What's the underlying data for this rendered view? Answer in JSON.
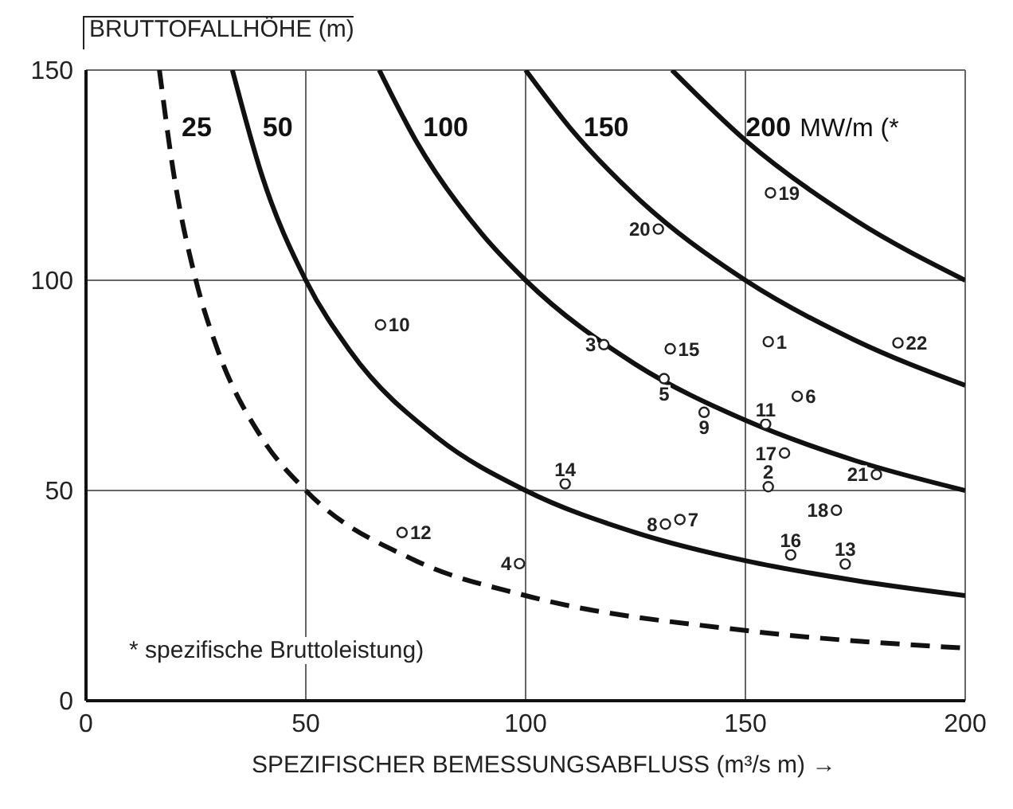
{
  "chart_data": {
    "type": "scatter",
    "xlabel": "SPEZIFISCHER BEMESSUNGSABFLUSS (m³/s m) →",
    "ylabel": "BRUTTOFALLHÖHE (m)",
    "xlim": [
      0,
      200
    ],
    "xticks": [
      0,
      50,
      100,
      150,
      200
    ],
    "ylim": [
      0,
      150
    ],
    "yticks": [
      0,
      50,
      100,
      150
    ],
    "grid": true,
    "marker": "circle",
    "annotations": [
      "MW/m (*",
      "* spezifische Bruttoleistung)",
      {
        "text": "1",
        "x": 155.2,
        "y": 85.4
      },
      {
        "text": "2",
        "x": 155.2,
        "y": 50.9
      },
      {
        "text": "3",
        "x": 117.8,
        "y": 84.7
      },
      {
        "text": "4",
        "x": 98.6,
        "y": 32.6
      },
      {
        "text": "5",
        "x": 131.5,
        "y": 76.6
      },
      {
        "text": "6",
        "x": 161.8,
        "y": 72.4
      },
      {
        "text": "7",
        "x": 135.1,
        "y": 43.1
      },
      {
        "text": "8",
        "x": 131.8,
        "y": 42.0
      },
      {
        "text": "9",
        "x": 140.6,
        "y": 68.6
      },
      {
        "text": "10",
        "x": 67.0,
        "y": 89.4
      },
      {
        "text": "11",
        "x": 154.6,
        "y": 65.8
      },
      {
        "text": "12",
        "x": 71.9,
        "y": 40.0
      },
      {
        "text": "13",
        "x": 172.7,
        "y": 32.5
      },
      {
        "text": "14",
        "x": 109.0,
        "y": 51.6
      },
      {
        "text": "15",
        "x": 132.9,
        "y": 83.7
      },
      {
        "text": "16",
        "x": 160.3,
        "y": 34.7
      },
      {
        "text": "17",
        "x": 158.9,
        "y": 58.9
      },
      {
        "text": "18",
        "x": 170.7,
        "y": 45.3
      },
      {
        "text": "19",
        "x": 155.7,
        "y": 120.8
      },
      {
        "text": "20",
        "x": 130.2,
        "y": 112.2
      },
      {
        "text": "21",
        "x": 179.8,
        "y": 53.8
      },
      {
        "text": "22",
        "x": 184.7,
        "y": 85.1
      }
    ],
    "series": [
      {
        "color": "#222222",
        "x": [
          155.2,
          155.2,
          117.8,
          98.6,
          131.5,
          161.8,
          135.1,
          131.8,
          140.6,
          67.0,
          154.6,
          71.9,
          172.7,
          109.0,
          132.9,
          160.3,
          158.9,
          170.7,
          155.7,
          130.2,
          179.8,
          184.7
        ],
        "values": [
          85.4,
          50.9,
          84.7,
          32.6,
          76.6,
          72.4,
          43.1,
          42.0,
          68.6,
          89.4,
          65.8,
          40.0,
          32.5,
          51.6,
          83.7,
          34.7,
          58.9,
          45.3,
          120.8,
          112.2,
          53.8,
          85.1
        ]
      },
      {
        "type": "line",
        "name": "25",
        "color": "#111111",
        "line_style": "dashed",
        "marker": "none",
        "x": [
          16.7,
          20,
          25,
          30,
          40,
          50,
          75,
          100,
          150,
          200
        ],
        "values": [
          150,
          125,
          100,
          83.3,
          62.5,
          50,
          33.3,
          25,
          16.7,
          12.5
        ]
      },
      {
        "type": "line",
        "name": "50",
        "color": "#111111",
        "line_style": "solid",
        "marker": "none",
        "x": [
          33.3,
          40,
          50,
          60,
          80,
          100,
          125,
          150,
          175,
          200
        ],
        "values": [
          150,
          125,
          100,
          83.3,
          62.5,
          50,
          40,
          33.3,
          28.6,
          25
        ]
      },
      {
        "type": "line",
        "name": "100",
        "color": "#111111",
        "line_style": "solid",
        "marker": "none",
        "x": [
          66.7,
          75,
          90,
          100,
          125,
          150,
          175,
          200
        ],
        "values": [
          150,
          133.3,
          111.1,
          100,
          80,
          66.7,
          57.1,
          50
        ]
      },
      {
        "type": "line",
        "name": "150",
        "color": "#111111",
        "line_style": "solid",
        "marker": "none",
        "x": [
          100,
          110,
          125,
          150,
          175,
          200
        ],
        "values": [
          150,
          136.4,
          120,
          100,
          85.7,
          75
        ]
      },
      {
        "type": "line",
        "name": "200",
        "color": "#111111",
        "line_style": "solid",
        "marker": "none",
        "x": [
          133.3,
          150,
          175,
          200
        ],
        "values": [
          150,
          133.3,
          114.3,
          100
        ]
      }
    ]
  }
}
